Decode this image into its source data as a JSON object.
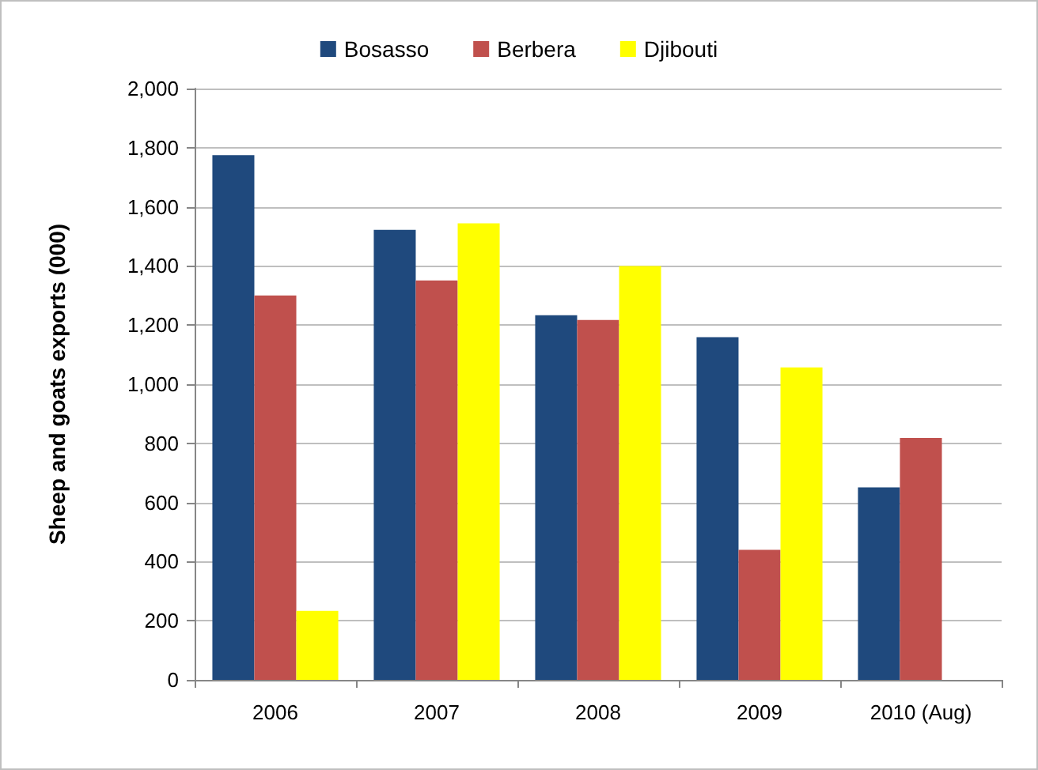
{
  "chart_data": {
    "type": "bar",
    "ylabel": "Sheep and goats exports (000)",
    "categories": [
      "2006",
      "2007",
      "2008",
      "2009",
      "2010 (Aug)"
    ],
    "series": [
      {
        "name": "Bosasso",
        "color": "#1f497d",
        "values": [
          1775,
          1522,
          1233,
          1159,
          651
        ]
      },
      {
        "name": "Berbera",
        "color": "#c0504d",
        "values": [
          1300,
          1351,
          1217,
          440,
          818
        ]
      },
      {
        "name": "Djibouti",
        "color": "#ffff00",
        "values": [
          233,
          1544,
          1400,
          1057,
          null
        ]
      }
    ],
    "ylim": [
      0,
      2000
    ],
    "yticks": [
      {
        "value": 0,
        "label": "0"
      },
      {
        "value": 200,
        "label": "200"
      },
      {
        "value": 400,
        "label": "400"
      },
      {
        "value": 600,
        "label": "600"
      },
      {
        "value": 800,
        "label": "800"
      },
      {
        "value": 1000,
        "label": "1,000"
      },
      {
        "value": 1200,
        "label": "1,200"
      },
      {
        "value": 1400,
        "label": "1,400"
      },
      {
        "value": 1600,
        "label": "1,600"
      },
      {
        "value": 1800,
        "label": "1,800"
      },
      {
        "value": 2000,
        "label": "2,000"
      }
    ],
    "grid": "y",
    "legend": "top"
  }
}
